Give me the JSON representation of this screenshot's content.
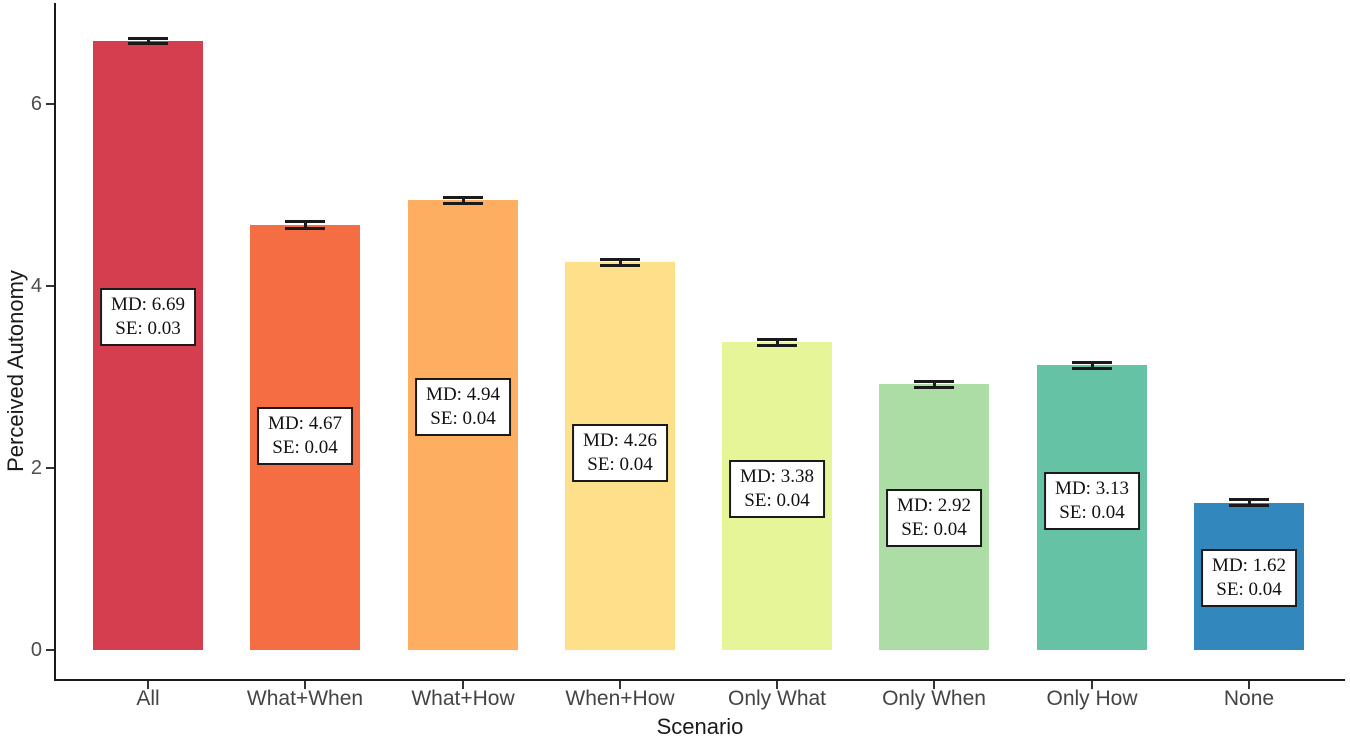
{
  "chart_data": {
    "type": "bar",
    "title": "",
    "xlabel": "Scenario",
    "ylabel": "Perceived Autonomy",
    "ylim": [
      0,
      7
    ],
    "y_ticks": [
      0,
      2,
      4,
      6
    ],
    "grid": false,
    "legend": false,
    "categories": [
      "All",
      "What+When",
      "What+How",
      "When+How",
      "Only What",
      "Only When",
      "Only How",
      "None"
    ],
    "values": [
      6.69,
      4.67,
      4.94,
      4.26,
      3.38,
      2.92,
      3.13,
      1.62
    ],
    "standard_errors": [
      0.03,
      0.04,
      0.04,
      0.04,
      0.04,
      0.04,
      0.04,
      0.04
    ],
    "bar_colors": [
      "#D53E4F",
      "#F46D43",
      "#FDAE61",
      "#FEE08B",
      "#E6F598",
      "#ABDDA4",
      "#66C2A5",
      "#3288BD"
    ],
    "annotations": [
      {
        "line1": "MD: 6.69",
        "line2": "SE: 0.03",
        "y": 3.66
      },
      {
        "line1": "MD: 4.67",
        "line2": "SE: 0.04",
        "y": 2.35
      },
      {
        "line1": "MD: 4.94",
        "line2": "SE: 0.04",
        "y": 2.67
      },
      {
        "line1": "MD: 4.26",
        "line2": "SE: 0.04",
        "y": 2.16
      },
      {
        "line1": "MD: 3.38",
        "line2": "SE: 0.04",
        "y": 1.77
      },
      {
        "line1": "MD: 2.92",
        "line2": "SE: 0.04",
        "y": 1.45
      },
      {
        "line1": "MD: 3.13",
        "line2": "SE: 0.04",
        "y": 1.64
      },
      {
        "line1": "MD: 1.62",
        "line2": "SE: 0.04",
        "y": 0.79
      }
    ],
    "error_bar_color": "#1a1a1a"
  }
}
